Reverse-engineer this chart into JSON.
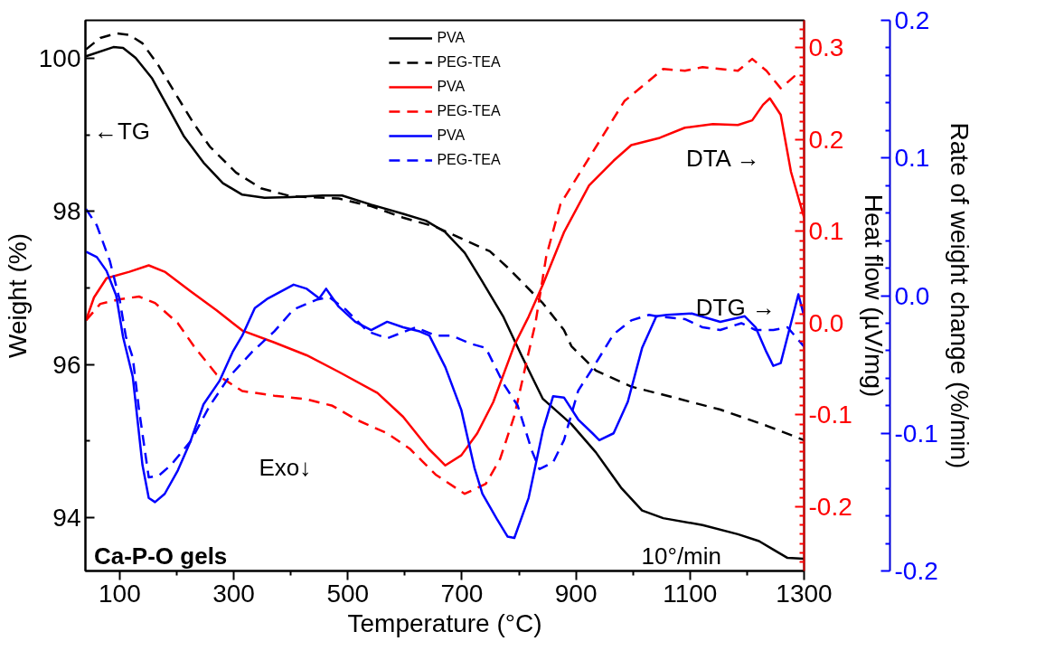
{
  "chart_data": {
    "type": "line",
    "xlabel": "Temperature (°C)",
    "ylabel": "Weight (%)",
    "y2label": "Heat flow (µV/mg)",
    "y3label": "Rate of weight change (%/min)",
    "xlim": [
      40,
      1300
    ],
    "xticks": [
      100,
      {
        "value": 200,
        "label": null
      },
      300,
      {
        "value": 400,
        "label": null
      },
      500,
      {
        "value": 600,
        "label": null
      },
      700,
      {
        "value": 800,
        "label": null
      },
      900,
      {
        "value": 1000,
        "label": null
      },
      1100,
      {
        "value": 1200,
        "label": null
      },
      1300
    ],
    "ylim": [
      93.3,
      100.5
    ],
    "yticks": [
      94,
      {
        "value": 95,
        "label": null
      },
      96,
      {
        "value": 97,
        "label": null
      },
      98,
      {
        "value": 99,
        "label": null
      },
      100
    ],
    "y2lim": [
      -0.27,
      0.33
    ],
    "y2ticks": [
      {
        "value": -0.26,
        "label": null
      },
      {
        "value": -0.25,
        "label": null
      },
      {
        "value": -0.24,
        "label": null
      },
      {
        "value": -0.23,
        "label": null
      },
      {
        "value": -0.22,
        "label": null
      },
      {
        "value": -0.21,
        "label": null
      },
      -0.2,
      {
        "value": -0.19,
        "label": null
      },
      {
        "value": -0.18,
        "label": null
      },
      {
        "value": -0.17,
        "label": null
      },
      {
        "value": -0.16,
        "label": null
      },
      {
        "value": -0.15,
        "label": null
      },
      {
        "value": -0.14,
        "label": null
      },
      {
        "value": -0.13,
        "label": null
      },
      {
        "value": -0.12,
        "label": null
      },
      {
        "value": -0.11,
        "label": null
      },
      -0.1,
      {
        "value": -0.09,
        "label": null
      },
      {
        "value": -0.08,
        "label": null
      },
      {
        "value": -0.07,
        "label": null
      },
      {
        "value": -0.06,
        "label": null
      },
      {
        "value": -0.05,
        "label": null
      },
      {
        "value": -0.04,
        "label": null
      },
      {
        "value": -0.03,
        "label": null
      },
      {
        "value": -0.02,
        "label": null
      },
      {
        "value": -0.01,
        "label": null
      },
      {
        "value": 0,
        "label": "0.0"
      },
      {
        "value": 0.01,
        "label": null
      },
      {
        "value": 0.02,
        "label": null
      },
      {
        "value": 0.03,
        "label": null
      },
      {
        "value": 0.04,
        "label": null
      },
      {
        "value": 0.05,
        "label": null
      },
      {
        "value": 0.06,
        "label": null
      },
      {
        "value": 0.07,
        "label": null
      },
      {
        "value": 0.08,
        "label": null
      },
      {
        "value": 0.09,
        "label": null
      },
      0.1,
      {
        "value": 0.11,
        "label": null
      },
      {
        "value": 0.12,
        "label": null
      },
      {
        "value": 0.13,
        "label": null
      },
      {
        "value": 0.14,
        "label": null
      },
      {
        "value": 0.15,
        "label": null
      },
      {
        "value": 0.16,
        "label": null
      },
      {
        "value": 0.17,
        "label": null
      },
      {
        "value": 0.18,
        "label": null
      },
      {
        "value": 0.19,
        "label": null
      },
      0.2,
      {
        "value": 0.21,
        "label": null
      },
      {
        "value": 0.22,
        "label": null
      },
      {
        "value": 0.23,
        "label": null
      },
      {
        "value": 0.24,
        "label": null
      },
      {
        "value": 0.25,
        "label": null
      },
      {
        "value": 0.26,
        "label": null
      },
      {
        "value": 0.27,
        "label": null
      },
      {
        "value": 0.28,
        "label": null
      },
      {
        "value": 0.29,
        "label": null
      },
      0.3,
      {
        "value": 0.31,
        "label": null
      },
      {
        "value": 0.32,
        "label": null
      }
    ],
    "y3lim": [
      -0.2,
      0.2
    ],
    "y3ticks": [
      -0.2,
      {
        "value": -0.18,
        "label": null
      },
      {
        "value": -0.16,
        "label": null
      },
      {
        "value": -0.14,
        "label": null
      },
      {
        "value": -0.12,
        "label": null
      },
      -0.1,
      {
        "value": -0.08,
        "label": null
      },
      {
        "value": -0.06,
        "label": null
      },
      {
        "value": -0.04,
        "label": null
      },
      {
        "value": -0.02,
        "label": null
      },
      {
        "value": 0,
        "label": "0.0"
      },
      {
        "value": 0.02,
        "label": null
      },
      {
        "value": 0.04,
        "label": null
      },
      {
        "value": 0.06,
        "label": null
      },
      {
        "value": 0.08,
        "label": null
      },
      0.1,
      {
        "value": 0.12,
        "label": null
      },
      {
        "value": 0.14,
        "label": null
      },
      {
        "value": 0.16,
        "label": null
      },
      {
        "value": 0.18,
        "label": null
      },
      0.2
    ],
    "legend": "top",
    "annotations": [
      "←TG",
      "DTA →",
      "DTG →",
      "Exo↓",
      "Ca-P-O gels",
      "10°/min"
    ],
    "series": [
      {
        "name": "PVA",
        "color": "#000000",
        "line_style": "solid",
        "x": [
          41,
          89,
          106,
          128,
          157,
          185,
          213,
          247,
          281,
          315,
          354,
          400,
          456,
          490,
          541,
          597,
          637,
          671,
          705,
          733,
          773,
          805,
          842,
          892,
          935,
          979,
          1016,
          1053,
          1122,
          1184,
          1221,
          1246,
          1271,
          1300
        ],
        "values": [
          100.03,
          100.15,
          100.14,
          100.01,
          99.74,
          99.36,
          98.98,
          98.64,
          98.37,
          98.22,
          98.18,
          98.19,
          98.21,
          98.21,
          98.09,
          97.97,
          97.88,
          97.73,
          97.46,
          97.12,
          96.62,
          96.11,
          95.55,
          95.22,
          94.85,
          94.39,
          94.09,
          93.99,
          93.9,
          93.78,
          93.69,
          93.58,
          93.47,
          93.46
        ]
      },
      {
        "name": "PEG-TEA",
        "color": "#000000",
        "line_style": "dashed",
        "x": [
          41,
          66,
          94,
          117,
          140,
          168,
          202,
          230,
          258,
          304,
          349,
          400,
          484,
          541,
          597,
          654,
          710,
          749,
          780,
          842,
          879,
          892,
          935,
          997,
          1060,
          1153,
          1234,
          1300
        ],
        "values": [
          100.12,
          100.27,
          100.33,
          100.31,
          100.2,
          99.91,
          99.49,
          99.15,
          98.85,
          98.51,
          98.3,
          98.2,
          98.17,
          98.07,
          97.92,
          97.8,
          97.61,
          97.48,
          97.27,
          96.8,
          96.45,
          96.24,
          95.92,
          95.71,
          95.59,
          95.41,
          95.2,
          95.01
        ]
      },
      {
        "name": "PVA",
        "color": "#ff0000",
        "line_style": "solid",
        "axis": "y2",
        "x": [
          41,
          55,
          77,
          117,
          151,
          179,
          224,
          270,
          315,
          371,
          428,
          484,
          552,
          597,
          642,
          671,
          699,
          727,
          755,
          792,
          817,
          842,
          879,
          923,
          966,
          997,
          1047,
          1091,
          1140,
          1184,
          1209,
          1228,
          1240,
          1259,
          1277,
          1300
        ],
        "values": [
          0.003,
          0.028,
          0.049,
          0.056,
          0.063,
          0.056,
          0.035,
          0.014,
          -0.008,
          -0.021,
          -0.035,
          -0.053,
          -0.076,
          -0.102,
          -0.137,
          -0.155,
          -0.144,
          -0.12,
          -0.086,
          -0.024,
          0.007,
          0.042,
          0.099,
          0.15,
          0.177,
          0.194,
          0.202,
          0.213,
          0.217,
          0.216,
          0.221,
          0.238,
          0.245,
          0.227,
          0.165,
          0.115
        ]
      },
      {
        "name": "PEG-TEA",
        "color": "#ff0000",
        "line_style": "dashed",
        "axis": "y2",
        "x": [
          41,
          66,
          100,
          134,
          162,
          202,
          230,
          270,
          315,
          371,
          428,
          473,
          518,
          569,
          609,
          654,
          705,
          742,
          767,
          792,
          817,
          829,
          848,
          873,
          923,
          985,
          1053,
          1091,
          1122,
          1184,
          1209,
          1234,
          1259,
          1283,
          1300
        ],
        "values": [
          0.003,
          0.021,
          0.026,
          0.029,
          0.022,
          0.0,
          -0.025,
          -0.056,
          -0.074,
          -0.079,
          -0.083,
          -0.09,
          -0.106,
          -0.12,
          -0.137,
          -0.165,
          -0.186,
          -0.175,
          -0.148,
          -0.101,
          -0.032,
          0.0,
          0.073,
          0.13,
          0.18,
          0.242,
          0.277,
          0.275,
          0.279,
          0.275,
          0.288,
          0.275,
          0.256,
          0.269,
          0.261
        ]
      },
      {
        "name": "PVA",
        "color": "#0000ff",
        "line_style": "solid",
        "axis": "y3",
        "x": [
          41,
          60,
          77,
          94,
          106,
          123,
          140,
          151,
          162,
          179,
          202,
          224,
          247,
          275,
          298,
          315,
          337,
          360,
          405,
          428,
          450,
          462,
          484,
          513,
          541,
          569,
          597,
          626,
          643,
          671,
          699,
          722,
          736,
          761,
          780,
          792,
          817,
          842,
          860,
          879,
          904,
          929,
          941,
          966,
          991,
          1016,
          1041,
          1060,
          1103,
          1153,
          1196,
          1215,
          1234,
          1246,
          1259,
          1277,
          1290,
          1300
        ],
        "values": [
          0.032,
          0.028,
          0.018,
          0.0,
          -0.03,
          -0.059,
          -0.123,
          -0.147,
          -0.15,
          -0.144,
          -0.127,
          -0.106,
          -0.079,
          -0.062,
          -0.041,
          -0.029,
          -0.009,
          -0.002,
          0.008,
          0.005,
          -0.002,
          0.005,
          -0.008,
          -0.019,
          -0.025,
          -0.019,
          -0.023,
          -0.026,
          -0.029,
          -0.052,
          -0.083,
          -0.125,
          -0.144,
          -0.162,
          -0.175,
          -0.176,
          -0.147,
          -0.098,
          -0.073,
          -0.074,
          -0.09,
          -0.1,
          -0.105,
          -0.1,
          -0.077,
          -0.038,
          -0.015,
          -0.014,
          -0.013,
          -0.019,
          -0.015,
          -0.023,
          -0.041,
          -0.051,
          -0.049,
          -0.02,
          0.001,
          -0.015
        ]
      },
      {
        "name": "PEG-TEA",
        "color": "#0000ff",
        "line_style": "dashed",
        "axis": "y3",
        "x": [
          41,
          60,
          83,
          100,
          111,
          123,
          134,
          151,
          168,
          190,
          224,
          258,
          292,
          332,
          371,
          405,
          445,
          467,
          496,
          535,
          569,
          619,
          654,
          682,
          716,
          742,
          773,
          798,
          823,
          836,
          860,
          879,
          904,
          935,
          966,
          997,
          1028,
          1041,
          1091,
          1122,
          1153,
          1190,
          1215,
          1246,
          1271,
          1300
        ],
        "values": [
          0.063,
          0.051,
          0.025,
          -0.003,
          -0.03,
          -0.045,
          -0.083,
          -0.132,
          -0.131,
          -0.123,
          -0.106,
          -0.08,
          -0.059,
          -0.041,
          -0.026,
          -0.01,
          -0.003,
          -0.001,
          -0.01,
          -0.026,
          -0.031,
          -0.023,
          -0.029,
          -0.029,
          -0.035,
          -0.038,
          -0.064,
          -0.08,
          -0.113,
          -0.126,
          -0.121,
          -0.105,
          -0.069,
          -0.049,
          -0.028,
          -0.018,
          -0.014,
          -0.015,
          -0.017,
          -0.023,
          -0.025,
          -0.02,
          -0.025,
          -0.025,
          -0.023,
          -0.037
        ]
      }
    ]
  }
}
